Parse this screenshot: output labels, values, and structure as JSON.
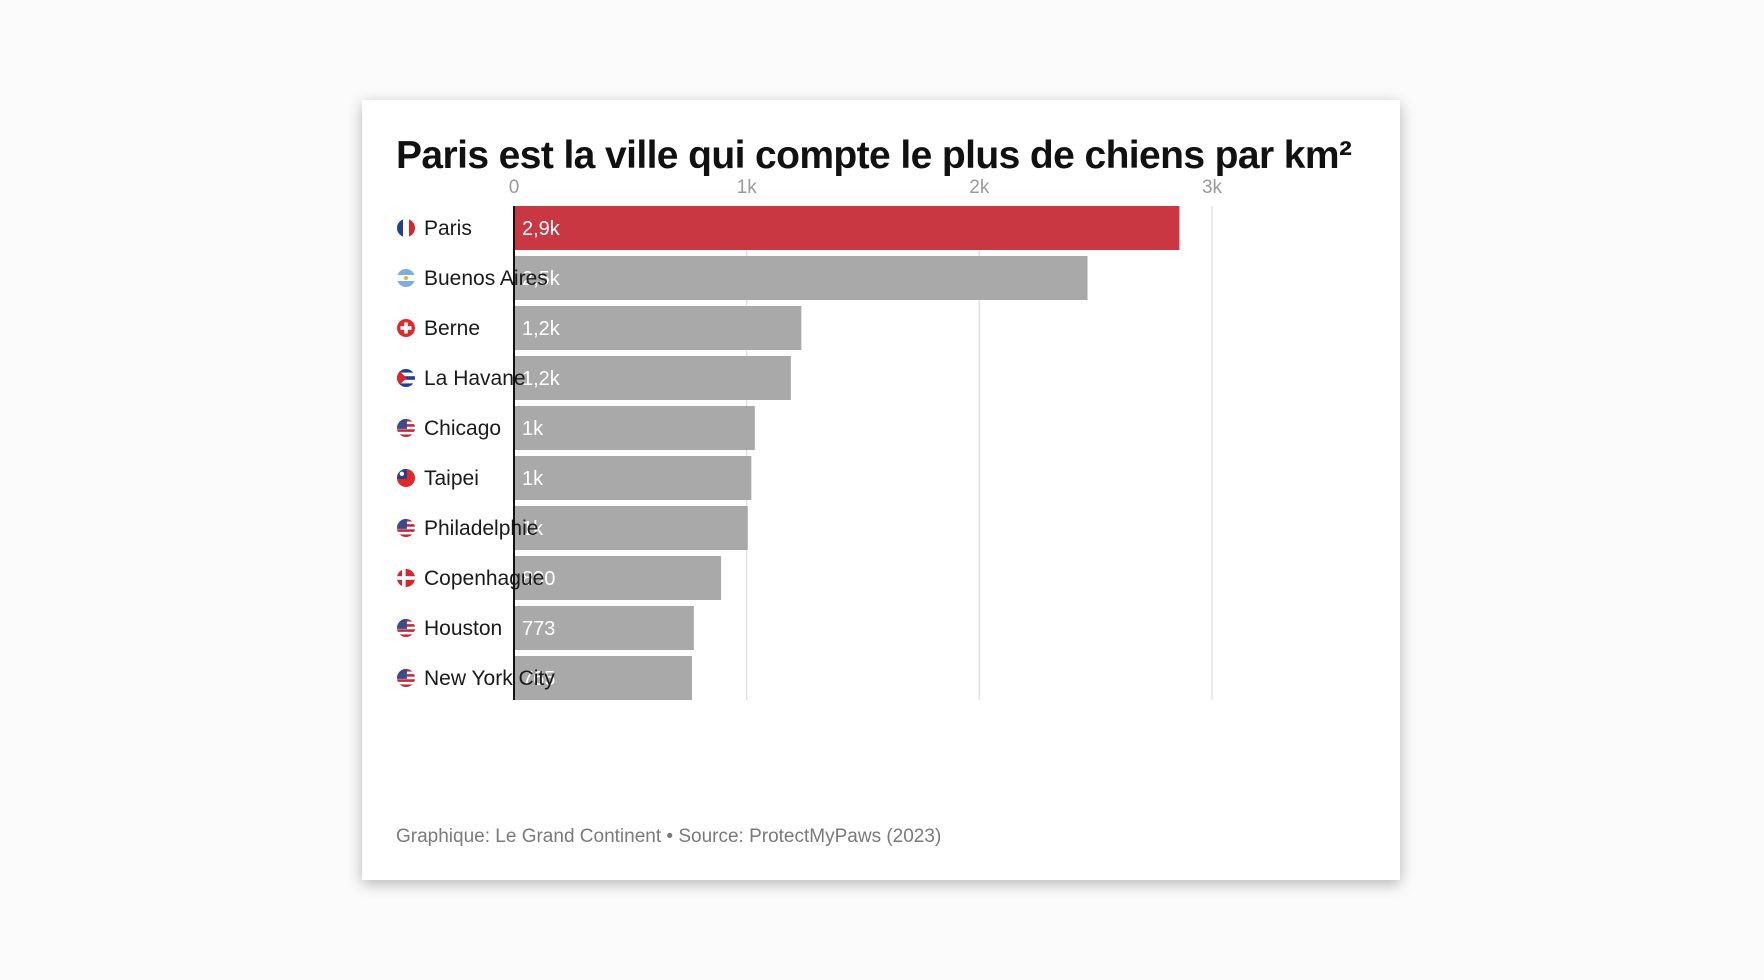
{
  "chart_data": {
    "type": "bar",
    "orientation": "horizontal",
    "title": "Paris est la ville qui compte le plus de chiens par km²",
    "xlim": [
      0,
      3000
    ],
    "ticks": [
      {
        "value": 0,
        "label": "0"
      },
      {
        "value": 1000,
        "label": "1k"
      },
      {
        "value": 2000,
        "label": "2k"
      },
      {
        "value": 3000,
        "label": "3k"
      }
    ],
    "grid": true,
    "highlight_color": "#c93743",
    "default_color": "#a9a9a9",
    "bars": [
      {
        "category": "Paris",
        "value": 2860,
        "label": "2,9k",
        "flag": "france-flag-icon",
        "highlight": true
      },
      {
        "category": "Buenos Aires",
        "value": 2465,
        "label": "2,5k",
        "flag": "argentina-flag-icon"
      },
      {
        "category": "Berne",
        "value": 1235,
        "label": "1,2k",
        "flag": "switzerland-flag-icon"
      },
      {
        "category": "La Havane",
        "value": 1190,
        "label": "1,2k",
        "flag": "cuba-flag-icon"
      },
      {
        "category": "Chicago",
        "value": 1035,
        "label": "1k",
        "flag": "usa-flag-icon"
      },
      {
        "category": "Taipei",
        "value": 1020,
        "label": "1k",
        "flag": "taiwan-flag-icon"
      },
      {
        "category": "Philadelphie",
        "value": 1005,
        "label": "1k",
        "flag": "usa-flag-icon"
      },
      {
        "category": "Copenhague",
        "value": 890,
        "label": "890",
        "flag": "denmark-flag-icon"
      },
      {
        "category": "Houston",
        "value": 773,
        "label": "773",
        "flag": "usa-flag-icon"
      },
      {
        "category": "New York City",
        "value": 765,
        "label": "765",
        "flag": "usa-flag-icon"
      }
    ]
  },
  "footer": "Graphique: Le Grand Continent • Source: ProtectMyPaws (2023)"
}
